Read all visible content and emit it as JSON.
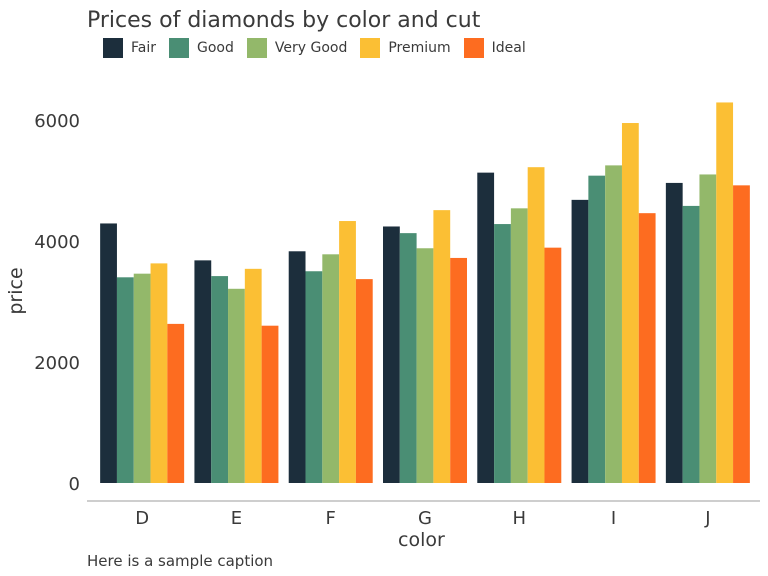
{
  "chart_data": {
    "type": "bar",
    "title": "Prices of diamonds by color and cut",
    "caption": "Here is a sample caption",
    "xlabel": "color",
    "ylabel": "price",
    "categories": [
      "D",
      "E",
      "F",
      "G",
      "H",
      "I",
      "J"
    ],
    "ylim": [
      0,
      6600
    ],
    "yticks": [
      0,
      2000,
      4000,
      6000
    ],
    "legend_position": "top-left",
    "grid": false,
    "series": [
      {
        "name": "Fair",
        "color": "#1c2e3c",
        "values": [
          4290,
          3680,
          3830,
          4240,
          5130,
          4680,
          4960
        ]
      },
      {
        "name": "Good",
        "color": "#4a8e74",
        "values": [
          3400,
          3420,
          3500,
          4130,
          4280,
          5080,
          4580
        ]
      },
      {
        "name": "Very Good",
        "color": "#93b86a",
        "values": [
          3460,
          3210,
          3780,
          3880,
          4540,
          5250,
          5100
        ]
      },
      {
        "name": "Premium",
        "color": "#fbbf34",
        "values": [
          3630,
          3540,
          4330,
          4510,
          5220,
          5950,
          6290
        ]
      },
      {
        "name": "Ideal",
        "color": "#fd6c20",
        "values": [
          2630,
          2600,
          3370,
          3720,
          3890,
          4460,
          4920
        ]
      }
    ]
  }
}
